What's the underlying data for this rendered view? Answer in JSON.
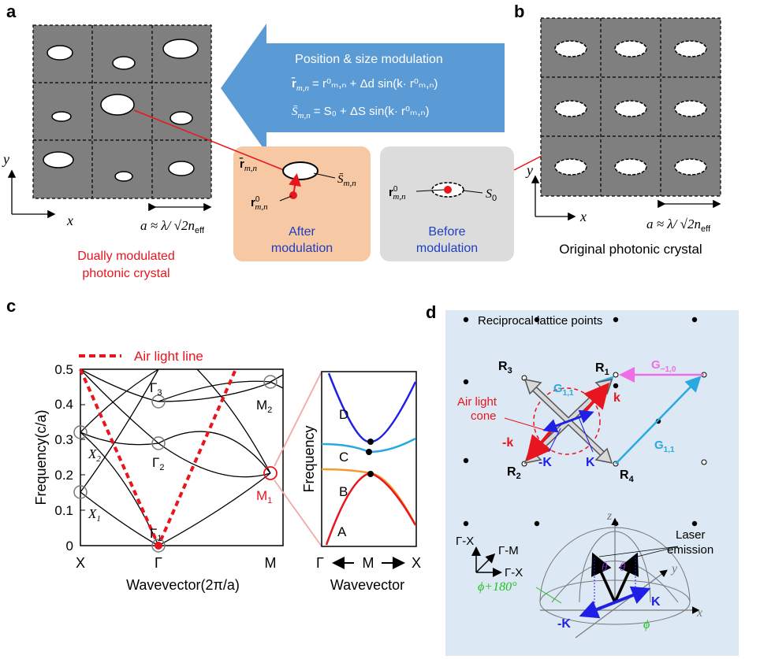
{
  "panels": {
    "a": "a",
    "b": "b",
    "c": "c",
    "d": "d"
  },
  "panel_a": {
    "modulation_title": "Position & size modulation",
    "eq1_lhs": "r̄",
    "eq1_sub": "m,n",
    "eq1_rhs": "= r⁰ₘ,ₙ + Δd sin(k· r⁰ₘ,ₙ)",
    "eq2_lhs": "S̄",
    "eq2_sub": "m,n",
    "eq2_rhs": "= S₀ + ΔS sin(k· r⁰ₘ,ₙ)",
    "axis_x": "x",
    "axis_y": "y",
    "lattice_const": "a ≈ λ/ √2n",
    "lattice_sub": "eff",
    "caption_line1": "Dually modulated",
    "caption_line2": "photonic crystal",
    "after_r_bar": "r̄",
    "after_r_bar_sub": "m,n",
    "after_s_bar": "S̄",
    "after_s_bar_sub": "m,n",
    "after_r0": "r",
    "after_r0_sub": "m,n",
    "after_r0_sup": "0",
    "after_label_1": "After",
    "after_label_2": "modulation",
    "before_r0": "r",
    "before_r0_sub": "m,n",
    "before_r0_sup": "0",
    "before_s0": "S",
    "before_s0_sub": "0",
    "before_label_1": "Before",
    "before_label_2": "modulation"
  },
  "panel_b": {
    "axis_x": "x",
    "axis_y": "y",
    "lattice_const": "a ≈ λ/ √2n",
    "lattice_sub": "eff",
    "caption": "Original photonic crystal"
  },
  "chart_data": [
    {
      "type": "line",
      "title": "",
      "legend": "Air light line",
      "xlabel": "Wavevector(2π/a)",
      "ylabel": "Frequency(c/a)",
      "x_ticks": [
        "X",
        "Γ",
        "M"
      ],
      "y_ticks": [
        "0",
        "0.1",
        "0.2",
        "0.3",
        "0.4",
        "0.5"
      ],
      "ylim": [
        0,
        0.5
      ],
      "points": [
        {
          "label": "X",
          "sub": "1",
          "x": "X",
          "y": 0.15
        },
        {
          "label": "X",
          "sub": "2",
          "x": "X",
          "y": 0.325
        },
        {
          "label": "Γ",
          "sub": "1",
          "x": "Γ",
          "y": 0.0
        },
        {
          "label": "Γ",
          "sub": "2",
          "x": "Γ",
          "y": 0.29
        },
        {
          "label": "Γ",
          "sub": "3",
          "x": "Γ",
          "y": 0.41
        },
        {
          "label": "M",
          "sub": "1",
          "x": "M",
          "y": 0.205
        },
        {
          "label": "M",
          "sub": "2",
          "x": "M",
          "y": 0.46
        }
      ],
      "air_light_line": [
        {
          "x": "X",
          "y": 0.5
        },
        {
          "x": "Γ",
          "y": 0.0
        },
        {
          "x": "M",
          "y": 0.5
        }
      ]
    },
    {
      "type": "line",
      "title": "",
      "xlabel": "Wavevector",
      "ylabel": "Frequency",
      "x_ticks": [
        "Γ",
        "M",
        "X"
      ],
      "band_labels": [
        "D",
        "C",
        "B",
        "A"
      ]
    }
  ],
  "panel_d": {
    "reciprocal_label": "Reciprocal lattice points",
    "r1": "R",
    "r1_sub": "1",
    "r2": "R",
    "r2_sub": "2",
    "r3": "R",
    "r3_sub": "3",
    "r4": "R",
    "r4_sub": "4",
    "g11_top": "G",
    "g11_top_sub": "1,1",
    "g11_right": "G",
    "g11_right_sub": "1,1",
    "g_10": "G",
    "g_10_sub": "−1,0",
    "air_cone_1": "Air light",
    "air_cone_2": "cone",
    "k_pos": "k",
    "k_neg": "-k",
    "K_pos": "K",
    "K_neg": "-K",
    "dir_gx_v": "Γ-X",
    "dir_gm": "Γ-M",
    "dir_gx_h": "Γ-X",
    "laser_1": "Laser",
    "laser_2": "emission",
    "axis_z": "z",
    "axis_y": "y",
    "axis_x": "x",
    "theta": "θ",
    "phi_180": "ϕ+180°",
    "phi": "ϕ",
    "K3d": "K",
    "K3d_neg": "-K"
  },
  "colors": {
    "blue_arrow": "#5b9bd5",
    "after_box": "#f6c8a4",
    "before_box": "#dcdcdc",
    "crystal_gray": "#7f7f7f",
    "panel_d_bg": "#dce8f3",
    "red": "#e8151f",
    "blue": "#1f1fe6",
    "cyan": "#2aa9e0",
    "magenta": "#ee6ee8",
    "orange": "#f39a2e",
    "green": "#1fc11f",
    "purple": "#7a2fc0"
  }
}
